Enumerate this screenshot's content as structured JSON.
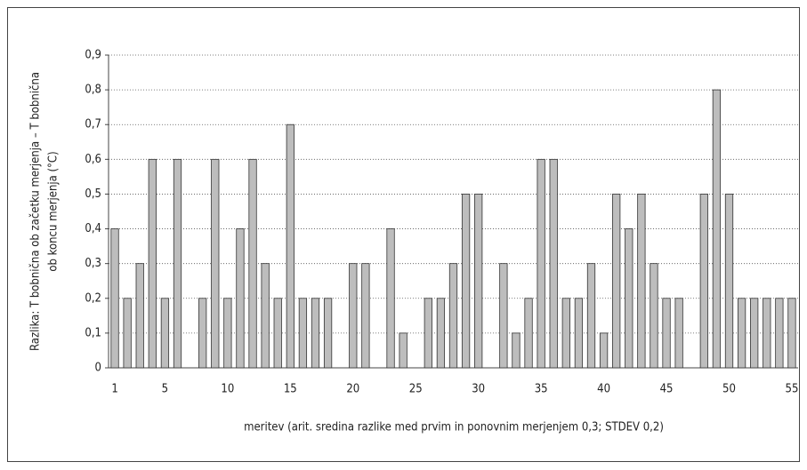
{
  "chart_data": {
    "type": "bar",
    "ylabel": [
      "Razlika: T bobnična ob začetku merjenja – T bobnična",
      "ob koncu merjenja (°C)"
    ],
    "xlabel": "meritev (arit. sredina razlike med prvim in ponovnim merjenjem 0,3; STDEV 0,2)",
    "categories": [
      1,
      null,
      null,
      null,
      5,
      null,
      null,
      null,
      null,
      10,
      null,
      null,
      null,
      null,
      15,
      null,
      null,
      null,
      null,
      20,
      null,
      null,
      null,
      null,
      25,
      null,
      null,
      null,
      null,
      30,
      null,
      null,
      null,
      null,
      35,
      null,
      null,
      null,
      null,
      40,
      null,
      null,
      null,
      null,
      45,
      null,
      null,
      null,
      null,
      50,
      null,
      null,
      null,
      null,
      55
    ],
    "values": [
      0.4,
      0.2,
      0.3,
      0.6,
      0.2,
      0.6,
      0,
      0.2,
      0.6,
      0.2,
      0.4,
      0.6,
      0.3,
      0.2,
      0.7,
      0.2,
      0.2,
      0.2,
      0,
      0.3,
      0.3,
      0,
      0.4,
      0.1,
      0,
      0.2,
      0.2,
      0.3,
      0.5,
      0.5,
      0,
      0.3,
      0.1,
      0.2,
      0.6,
      0.6,
      0.2,
      0.2,
      0.3,
      0.1,
      0.5,
      0.4,
      0.5,
      0.3,
      0.2,
      0.2,
      0,
      0.5,
      0.8,
      0.5,
      0.2,
      0.2,
      0.2,
      0.2,
      0.2
    ],
    "color": "#bdbdbd",
    "ylim": [
      0,
      0.9
    ],
    "yticks": [
      0,
      {
        "value": 0.1,
        "label": "0,1"
      },
      {
        "value": 0.2,
        "label": "0,2"
      },
      {
        "value": 0.3,
        "label": "0,3"
      },
      {
        "value": 0.4,
        "label": "0,4"
      },
      {
        "value": 0.5,
        "label": "0,5"
      },
      {
        "value": 0.6,
        "label": "0,6"
      },
      {
        "value": 0.7,
        "label": "0,7"
      },
      {
        "value": 0.8,
        "label": "0,8"
      },
      {
        "value": 0.9,
        "label": "0,9"
      }
    ],
    "grid": true
  }
}
